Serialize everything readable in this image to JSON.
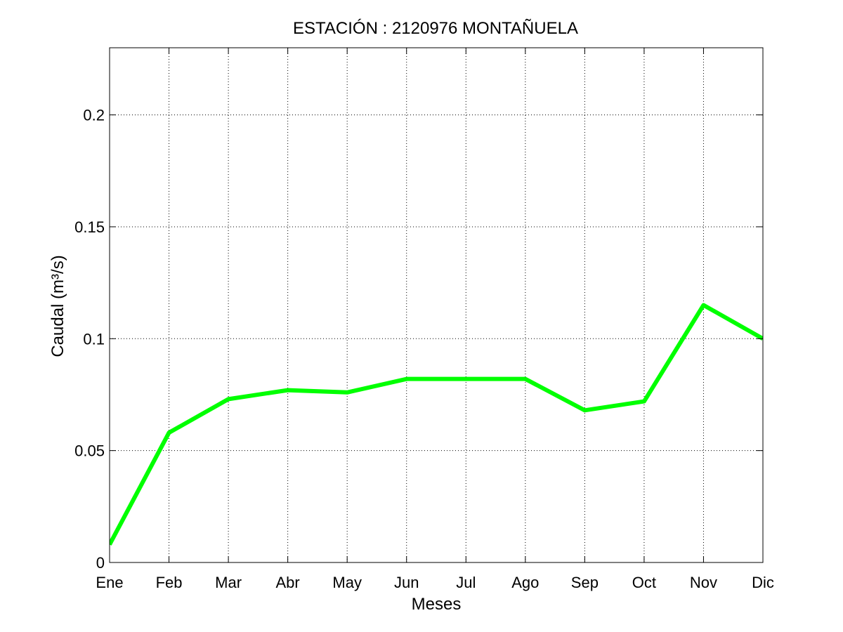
{
  "chart_data": {
    "type": "line",
    "title": "ESTACIÓN :  2120976  MONTAÑUELA",
    "xlabel": "Meses",
    "ylabel": "Caudal (m³/s)",
    "categories": [
      "Ene",
      "Feb",
      "Mar",
      "Abr",
      "May",
      "Jun",
      "Jul",
      "Ago",
      "Sep",
      "Oct",
      "Nov",
      "Dic"
    ],
    "series": [
      {
        "name": "Caudal",
        "color": "#00ff00",
        "values": [
          0.008,
          0.058,
          0.073,
          0.077,
          0.076,
          0.082,
          0.082,
          0.082,
          0.068,
          0.072,
          0.115,
          0.1
        ]
      }
    ],
    "ylim": [
      0,
      0.23
    ],
    "yticks": [
      0,
      0.05,
      0.1,
      0.15,
      0.2
    ],
    "ytick_labels": [
      "0",
      "0.05",
      "0.1",
      "0.15",
      "0.2"
    ],
    "grid": true
  }
}
